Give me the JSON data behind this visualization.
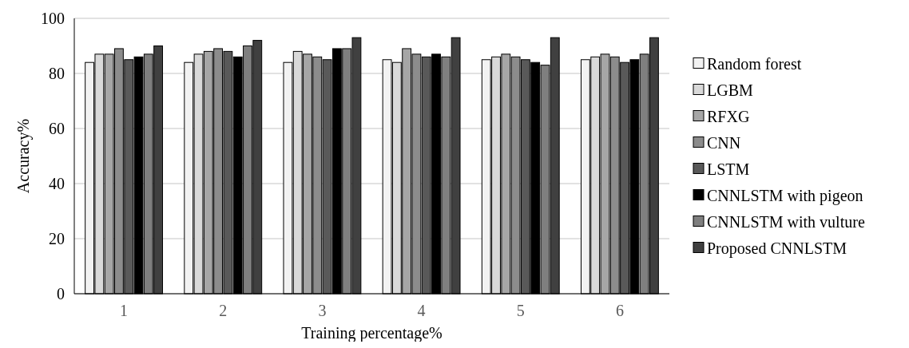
{
  "chart_data": {
    "type": "bar",
    "xlabel": "Training percentage%",
    "ylabel": "Accuracy%",
    "categories": [
      "1",
      "2",
      "3",
      "4",
      "5",
      "6"
    ],
    "ylim": [
      0,
      100
    ],
    "yticks": [
      0,
      20,
      40,
      60,
      80,
      100
    ],
    "grid": "y",
    "legend": "right",
    "series": [
      {
        "name": "Random forest",
        "color": "#f2f2f2",
        "values": [
          84,
          84,
          84,
          85,
          85,
          85
        ]
      },
      {
        "name": "LGBM",
        "color": "#d9d9d9",
        "values": [
          87,
          87,
          88,
          84,
          86,
          86
        ]
      },
      {
        "name": "RFXG",
        "color": "#a6a6a6",
        "values": [
          87,
          88,
          87,
          89,
          87,
          87
        ]
      },
      {
        "name": "CNN",
        "color": "#8c8c8c",
        "values": [
          89,
          89,
          86,
          87,
          86,
          86
        ]
      },
      {
        "name": "LSTM",
        "color": "#595959",
        "values": [
          85,
          88,
          85,
          86,
          85,
          84
        ]
      },
      {
        "name": "CNNLSTM with pigeon",
        "color": "#000000",
        "values": [
          86,
          86,
          89,
          87,
          84,
          85
        ]
      },
      {
        "name": "CNNLSTM with vulture",
        "color": "#7f7f7f",
        "values": [
          87,
          90,
          89,
          86,
          83,
          87
        ]
      },
      {
        "name": "Proposed CNNLSTM",
        "color": "#404040",
        "values": [
          90,
          92,
          93,
          93,
          93,
          93
        ]
      }
    ]
  }
}
